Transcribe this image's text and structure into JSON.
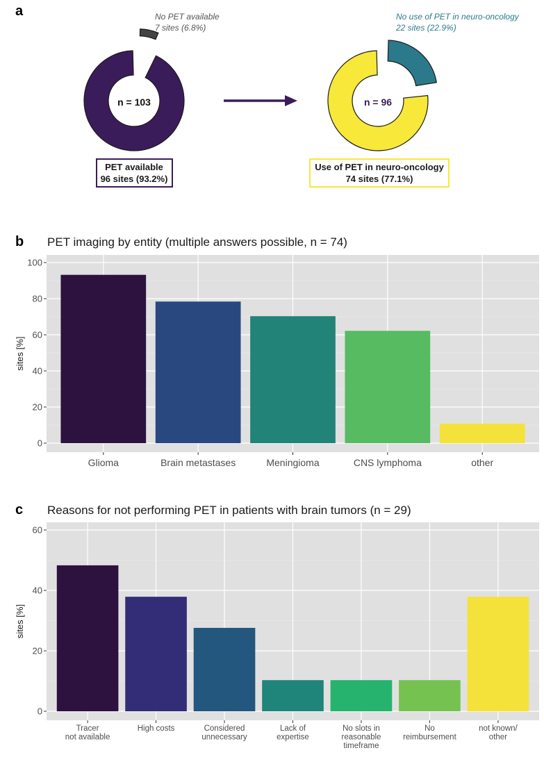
{
  "colors": {
    "pet_available": "#3b1c5a",
    "no_pet": "#444444",
    "use_pet": "#f7e83a",
    "no_use_pet": "#2b7a8c",
    "arrow": "#3b1c5a",
    "panel_bg": "#e0e0e0"
  },
  "panel_a": {
    "letter": "a",
    "left_donut": {
      "center_label": "n = 103",
      "callout_line1": "No PET available",
      "callout_line2": "7 sites (6.8%)",
      "box_line1": "PET available",
      "box_line2": "96 sites (93.2%)",
      "main_value": 96,
      "split_value": 7
    },
    "right_donut": {
      "center_label": "n = 96",
      "callout_line1": "No use of PET in neuro-oncology",
      "callout_line2": "22 sites (22.9%)",
      "box_line1": "Use of PET in neuro-oncology",
      "box_line2": "74 sites (77.1%)",
      "main_value": 74,
      "split_value": 22
    }
  },
  "chart_data": [
    {
      "panel": "b",
      "type": "bar",
      "title": "PET imaging by entity (multiple answers possible, n = 74)",
      "ylabel": "sites [%]",
      "xlabel": "",
      "ylim": [
        0,
        100
      ],
      "yticks": [
        0,
        20,
        40,
        60,
        80,
        100
      ],
      "categories": [
        "Glioma",
        "Brain metastases",
        "Meningioma",
        "CNS lymphoma",
        "other"
      ],
      "values": [
        93.2,
        78.4,
        70.3,
        62.2,
        10.8
      ],
      "colors": [
        "#2d1240",
        "#2a4880",
        "#228379",
        "#57bb62",
        "#f4e23a"
      ]
    },
    {
      "panel": "c",
      "type": "bar",
      "title": "Reasons for not performing PET in patients with brain tumors (n = 29)",
      "ylabel": "sites [%]",
      "xlabel": "",
      "ylim": [
        0,
        60
      ],
      "yticks": [
        0,
        20,
        40,
        60
      ],
      "categories": [
        [
          "Tracer",
          "not available"
        ],
        [
          "High costs"
        ],
        [
          "Considered",
          "unnecessary"
        ],
        [
          "Lack of",
          "expertise"
        ],
        [
          "No slots in",
          "reasonable",
          "timeframe"
        ],
        [
          "No",
          "reimbursement"
        ],
        [
          "not known/",
          "other"
        ]
      ],
      "values": [
        48.3,
        37.9,
        27.6,
        10.3,
        10.3,
        10.3,
        37.9
      ],
      "colors": [
        "#2d1240",
        "#332d77",
        "#23577d",
        "#1f8479",
        "#25b36d",
        "#76c250",
        "#f4e23a"
      ]
    }
  ]
}
